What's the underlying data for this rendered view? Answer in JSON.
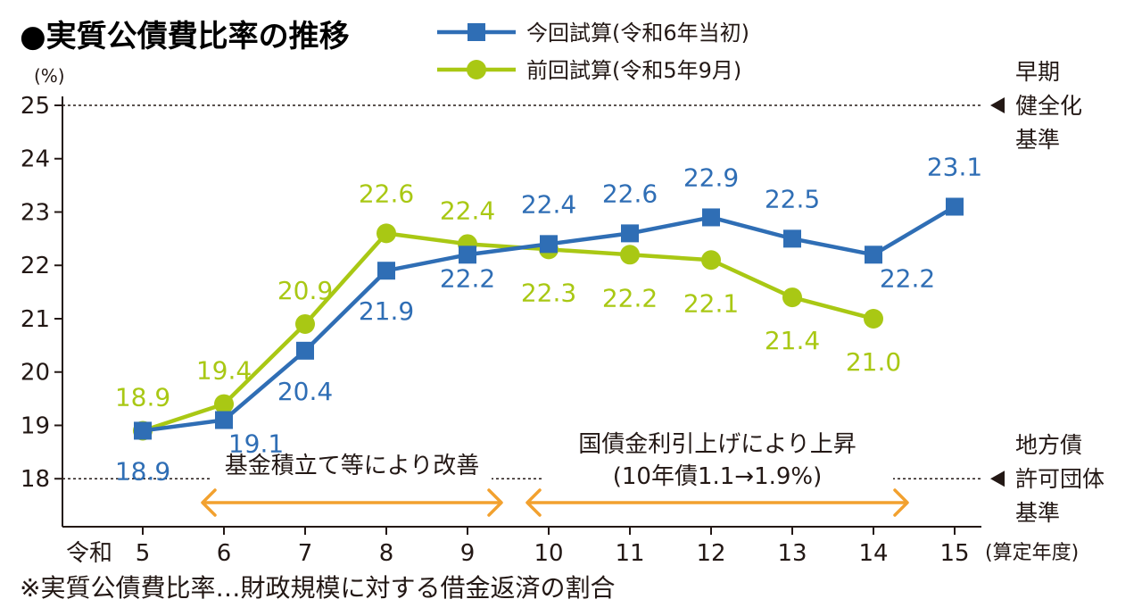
{
  "title": "●実質公債費比率の推移",
  "note": "※実質公債費比率…財政規模に対する借金返済の割合",
  "colors": {
    "current": "#2f6eb5",
    "previous": "#a9c814",
    "arrow": "#f2a12f",
    "text": "#231815"
  },
  "chart_data": {
    "type": "line",
    "title": "●実質公債費比率の推移",
    "ylabel": "(%)",
    "xlabel": "(算定年度)",
    "x_prefix": "令和",
    "categories": [
      "5",
      "6",
      "7",
      "8",
      "9",
      "10",
      "11",
      "12",
      "13",
      "14",
      "15"
    ],
    "ylim": [
      17.1,
      25
    ],
    "yticks": [
      "18",
      "19",
      "20",
      "21",
      "22",
      "23",
      "24",
      "25"
    ],
    "grid": false,
    "legend_position": "top",
    "series": [
      {
        "name": "今回試算(令和6年当初)",
        "marker": "square",
        "color": "#2f6eb5",
        "values": [
          18.9,
          19.1,
          20.4,
          21.9,
          22.2,
          22.4,
          22.6,
          22.9,
          22.5,
          22.2,
          23.1
        ],
        "labels": [
          "18.9",
          "19.1",
          "20.4",
          "21.9",
          "22.2",
          "22.4",
          "22.6",
          "22.9",
          "22.5",
          "22.2",
          "23.1"
        ]
      },
      {
        "name": "前回試算(令和5年9月)",
        "marker": "circle",
        "color": "#a9c814",
        "values": [
          18.9,
          19.4,
          20.9,
          22.6,
          22.4,
          22.3,
          22.2,
          22.1,
          21.4,
          21.0,
          null
        ],
        "labels": [
          "18.9",
          "19.4",
          "20.9",
          "22.6",
          "22.4",
          "22.3",
          "22.2",
          "22.1",
          "21.4",
          "21.0",
          null
        ]
      }
    ],
    "reference_lines": [
      {
        "value": 25,
        "label": [
          "早期",
          "健全化",
          "基準"
        ]
      },
      {
        "value": 18,
        "label": [
          "地方債",
          "許可団体",
          "基準"
        ]
      }
    ],
    "annotations": [
      {
        "text": [
          "基金積立て等により改善"
        ],
        "from": "6",
        "to": "9"
      },
      {
        "text": [
          "国債金利引上げにより上昇",
          "(10年債1.1→1.9%)"
        ],
        "from": "10",
        "to": "14"
      }
    ]
  }
}
